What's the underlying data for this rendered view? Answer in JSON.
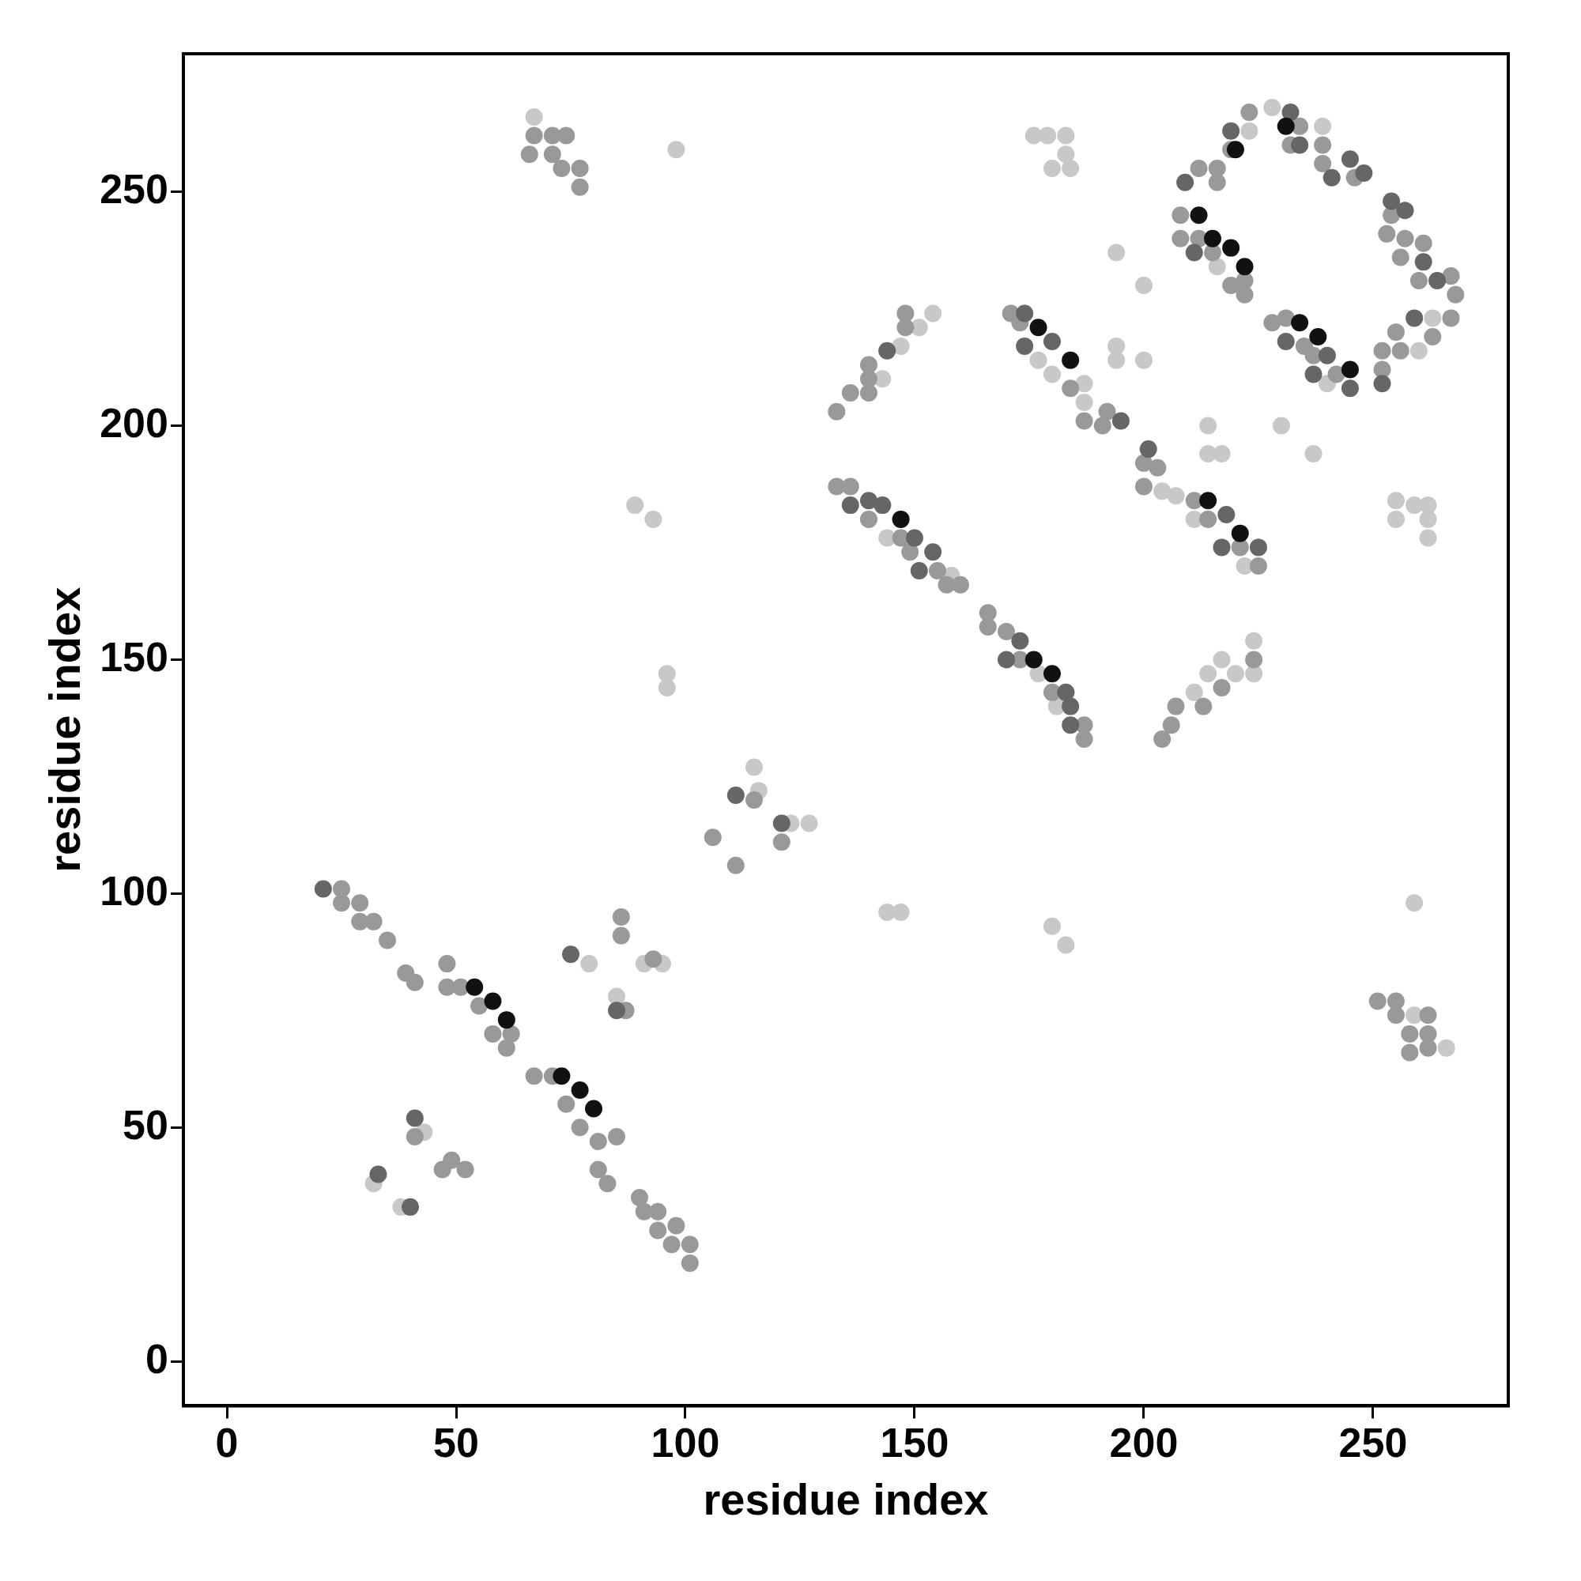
{
  "chart_data": {
    "type": "scatter",
    "xlabel": "residue index",
    "ylabel": "residue index",
    "xlim": [
      -9.5,
      279.5
    ],
    "ylim": [
      -9.5,
      279.5
    ],
    "xticks": [
      0,
      50,
      100,
      150,
      200,
      250
    ],
    "yticks": [
      0,
      50,
      100,
      150,
      200,
      250
    ],
    "grid": false,
    "legend": false,
    "marker": "circle",
    "series": [
      {
        "color": "#c8c8c8",
        "x": [
          32,
          38,
          43,
          79,
          85,
          91,
          95,
          115,
          116,
          123,
          127,
          67,
          98,
          89,
          93,
          96,
          96,
          144,
          147,
          180,
          183,
          194,
          200,
          194,
          194,
          200,
          214,
          214,
          217,
          230,
          237,
          259,
          176,
          179,
          183,
          180,
          183,
          184,
          144,
          158,
          143,
          147,
          151,
          154,
          211,
          214,
          217,
          220,
          224,
          224,
          177,
          180,
          187,
          187,
          204,
          207,
          211,
          222,
          216,
          223,
          228,
          239,
          263,
          260,
          240,
          259,
          266,
          255,
          255,
          259,
          262,
          262,
          262,
          181,
          177
        ],
        "values": [
          38,
          33,
          49,
          85,
          78,
          85,
          85,
          127,
          122,
          115,
          115,
          266,
          259,
          183,
          180,
          147,
          144,
          96,
          96,
          93,
          89,
          237,
          230,
          217,
          214,
          214,
          200,
          194,
          194,
          200,
          194,
          98,
          262,
          262,
          262,
          255,
          258,
          255,
          176,
          168,
          210,
          217,
          221,
          224,
          143,
          147,
          150,
          147,
          154,
          147,
          214,
          211,
          205,
          209,
          186,
          185,
          180,
          170,
          234,
          263,
          268,
          264,
          223,
          216,
          209,
          74,
          67,
          184,
          180,
          183,
          183,
          180,
          176,
          140,
          147
        ]
      },
      {
        "color": "#999999",
        "x": [
          25,
          25,
          29,
          29,
          32,
          35,
          39,
          41,
          48,
          48,
          51,
          55,
          58,
          61,
          62,
          67,
          71,
          74,
          77,
          81,
          85,
          81,
          83,
          90,
          91,
          94,
          94,
          98,
          97,
          101,
          101,
          41,
          47,
          49,
          52,
          86,
          86,
          87,
          93,
          106,
          111,
          115,
          121,
          67,
          71,
          74,
          71,
          66,
          73,
          77,
          77,
          133,
          136,
          140,
          147,
          149,
          155,
          160,
          157,
          166,
          166,
          170,
          173,
          180,
          187,
          187,
          204,
          206,
          207,
          213,
          217,
          224,
          133,
          136,
          140,
          140,
          140,
          148,
          148,
          171,
          173,
          184,
          187,
          191,
          192,
          200,
          203,
          200,
          211,
          214,
          221,
          225,
          208,
          208,
          212,
          215,
          219,
          222,
          222,
          212,
          216,
          216,
          219,
          223,
          234,
          232,
          239,
          239,
          246,
          254,
          253,
          257,
          261,
          256,
          260,
          267,
          268,
          267,
          263,
          255,
          256,
          252,
          252,
          228,
          231,
          235,
          237,
          242,
          251,
          255,
          255,
          262,
          258,
          262,
          258,
          262
        ],
        "values": [
          101,
          98,
          98,
          94,
          94,
          90,
          83,
          81,
          85,
          80,
          80,
          76,
          70,
          67,
          70,
          61,
          61,
          55,
          50,
          47,
          48,
          41,
          38,
          35,
          32,
          32,
          28,
          29,
          25,
          25,
          21,
          48,
          41,
          43,
          41,
          95,
          91,
          75,
          86,
          112,
          106,
          120,
          111,
          262,
          262,
          262,
          258,
          258,
          255,
          255,
          251,
          187,
          187,
          180,
          176,
          173,
          169,
          166,
          166,
          160,
          157,
          156,
          150,
          143,
          136,
          133,
          133,
          136,
          140,
          140,
          144,
          150,
          203,
          207,
          207,
          210,
          213,
          221,
          224,
          224,
          222,
          208,
          201,
          200,
          203,
          192,
          191,
          187,
          184,
          180,
          174,
          170,
          245,
          240,
          240,
          237,
          230,
          231,
          228,
          255,
          252,
          255,
          259,
          267,
          264,
          260,
          260,
          256,
          253,
          245,
          241,
          240,
          239,
          236,
          231,
          232,
          228,
          223,
          219,
          220,
          216,
          216,
          212,
          222,
          223,
          217,
          215,
          211,
          77,
          77,
          74,
          74,
          70,
          70,
          66,
          67
        ]
      },
      {
        "color": "#666666",
        "x": [
          21,
          33,
          40,
          41,
          75,
          85,
          111,
          121,
          136,
          140,
          143,
          144,
          150,
          154,
          151,
          173,
          170,
          183,
          184,
          184,
          174,
          174,
          180,
          195,
          201,
          218,
          217,
          225,
          211,
          209,
          219,
          232,
          234,
          241,
          245,
          248,
          254,
          257,
          261,
          264,
          259,
          252,
          231,
          240,
          237,
          245
        ],
        "values": [
          101,
          40,
          33,
          52,
          87,
          75,
          121,
          115,
          183,
          184,
          183,
          216,
          176,
          173,
          169,
          154,
          150,
          143,
          140,
          136,
          224,
          217,
          218,
          201,
          195,
          181,
          174,
          174,
          237,
          252,
          263,
          267,
          260,
          253,
          257,
          254,
          248,
          246,
          235,
          231,
          223,
          209,
          218,
          215,
          211,
          208
        ]
      },
      {
        "color": "#111111",
        "x": [
          54,
          58,
          61,
          73,
          77,
          80,
          147,
          176,
          180,
          177,
          184,
          214,
          221,
          212,
          215,
          219,
          222,
          220,
          231,
          234,
          238,
          245
        ],
        "values": [
          80,
          77,
          73,
          61,
          58,
          54,
          180,
          150,
          147,
          221,
          214,
          184,
          177,
          245,
          240,
          238,
          234,
          259,
          264,
          222,
          219,
          212
        ]
      }
    ]
  }
}
